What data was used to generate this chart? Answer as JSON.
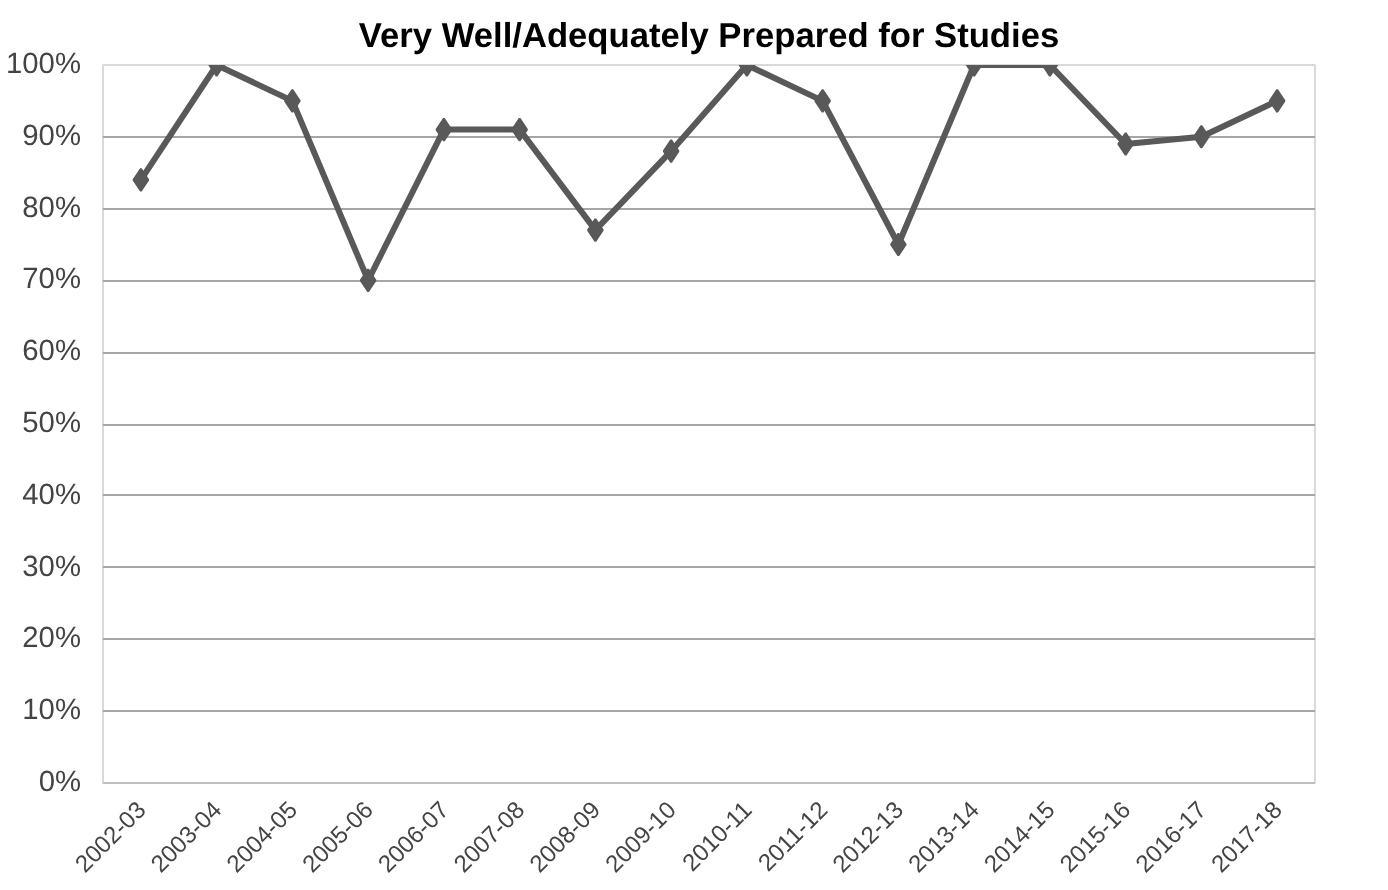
{
  "chart_data": {
    "type": "line",
    "title": "Very Well/Adequately Prepared for Studies",
    "categories": [
      "2002-03",
      "2003-04",
      "2004-05",
      "2005-06",
      "2006-07",
      "2007-08",
      "2008-09",
      "2009-10",
      "2010-11",
      "2011-12",
      "2012-13",
      "2013-14",
      "2014-15",
      "2015-16",
      "2016-17",
      "2017-18"
    ],
    "series": [
      {
        "color": "#595959",
        "values": [
          84,
          100,
          95,
          70,
          91,
          91,
          77,
          88,
          100,
          95,
          75,
          100,
          100,
          89,
          90,
          95
        ]
      }
    ],
    "ylim": [
      0,
      100
    ],
    "yticks": [
      {
        "value": 0,
        "label": "0%"
      },
      {
        "value": 10,
        "label": "10%"
      },
      {
        "value": 20,
        "label": "20%"
      },
      {
        "value": 30,
        "label": "30%"
      },
      {
        "value": 40,
        "label": "40%"
      },
      {
        "value": 50,
        "label": "50%"
      },
      {
        "value": 60,
        "label": "60%"
      },
      {
        "value": 70,
        "label": "70%"
      },
      {
        "value": 80,
        "label": "80%"
      },
      {
        "value": 90,
        "label": "90%"
      },
      {
        "value": 100,
        "label": "100%"
      }
    ],
    "grid": "y",
    "marker": "diamond",
    "line_style": "solid"
  }
}
